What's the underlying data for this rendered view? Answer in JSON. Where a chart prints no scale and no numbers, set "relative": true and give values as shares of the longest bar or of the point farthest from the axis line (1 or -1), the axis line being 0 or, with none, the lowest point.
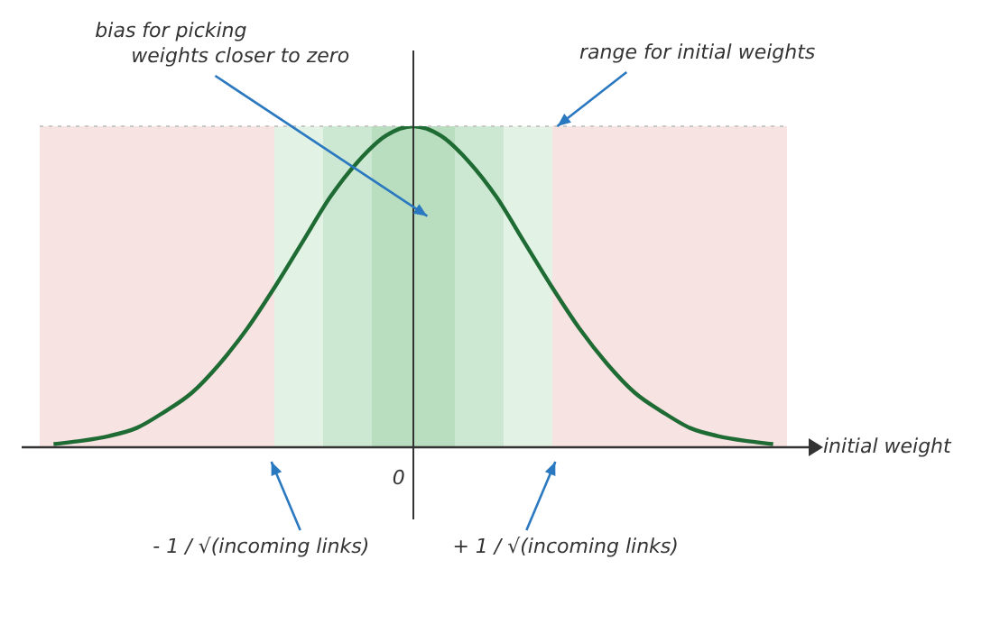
{
  "chart_data": {
    "type": "line",
    "relative": true,
    "xlabel": "initial weight",
    "categories": [
      null,
      null,
      null,
      null,
      null,
      null,
      null,
      null,
      null,
      null,
      null,
      null,
      null,
      null,
      null,
      null,
      null,
      null,
      null,
      null,
      null,
      null,
      null,
      null,
      null,
      null,
      null
    ],
    "series": [
      {
        "color": "#1f6b34",
        "values": [
          0.01,
          0.02,
          0.035,
          0.06,
          0.11,
          0.17,
          0.26,
          0.37,
          0.5,
          0.64,
          0.78,
          0.89,
          0.97,
          1,
          0.97,
          0.89,
          0.78,
          0.64,
          0.5,
          0.37,
          0.26,
          0.17,
          0.11,
          0.06,
          0.035,
          0.02,
          0.01
        ]
      }
    ],
    "ref_lines": [
      {
        "axis": "y",
        "value": 1,
        "line_style": "dotted",
        "color": "#c8c8c8"
      }
    ],
    "annotations": [
      "bias for picking weights closer to zero",
      "range for initial weights",
      "0",
      "- 1 / √(incoming links)",
      "+ 1 / √(incoming links)"
    ],
    "legend": false,
    "marker": "none",
    "line_style": "solid"
  }
}
